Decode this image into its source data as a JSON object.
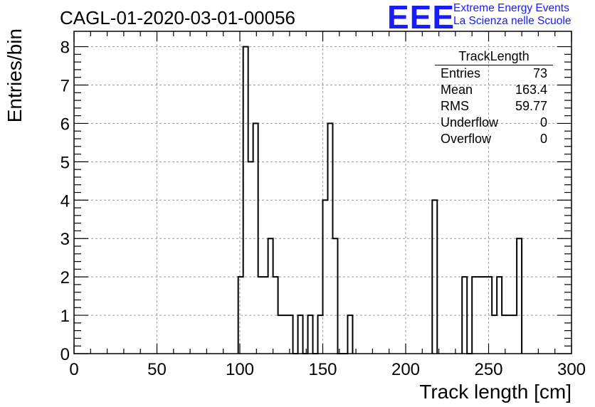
{
  "header": {
    "run_title": "CAGL-01-2020-03-01-00056",
    "logo": "EEE",
    "project_line1": "Extreme Energy Events",
    "project_line2": "La Scienza nelle Scuole"
  },
  "stats": {
    "title": "TrackLength",
    "rows": [
      {
        "label": "Entries",
        "value": "73"
      },
      {
        "label": "Mean",
        "value": "163.4"
      },
      {
        "label": "RMS",
        "value": "59.77"
      },
      {
        "label": "Underflow",
        "value": "0"
      },
      {
        "label": "Overflow",
        "value": "0"
      }
    ]
  },
  "colors": {
    "logo": "#1a1aff",
    "line": "#000000",
    "grid": "#9a9a9a"
  },
  "chart_data": {
    "type": "histogram",
    "title": "CAGL-01-2020-03-01-00056",
    "xlabel": "Track length [cm]",
    "ylabel": "Entries/bin",
    "xlim": [
      0,
      300
    ],
    "ylim": [
      0,
      8.4
    ],
    "xticks": [
      0,
      50,
      100,
      150,
      200,
      250,
      300
    ],
    "yticks": [
      0,
      1,
      2,
      3,
      4,
      5,
      6,
      7,
      8
    ],
    "grid": true,
    "bin_width": 3,
    "bins": [
      {
        "x": 99,
        "value": 2
      },
      {
        "x": 102,
        "value": 8
      },
      {
        "x": 105,
        "value": 5
      },
      {
        "x": 108,
        "value": 6
      },
      {
        "x": 111,
        "value": 2
      },
      {
        "x": 114,
        "value": 2
      },
      {
        "x": 117,
        "value": 3
      },
      {
        "x": 120,
        "value": 2
      },
      {
        "x": 123,
        "value": 1
      },
      {
        "x": 126,
        "value": 1
      },
      {
        "x": 129,
        "value": 1
      },
      {
        "x": 132,
        "value": 0
      },
      {
        "x": 135,
        "value": 1
      },
      {
        "x": 138,
        "value": 0
      },
      {
        "x": 141,
        "value": 1
      },
      {
        "x": 144,
        "value": 0
      },
      {
        "x": 147,
        "value": 1
      },
      {
        "x": 150,
        "value": 4
      },
      {
        "x": 153,
        "value": 6
      },
      {
        "x": 156,
        "value": 3
      },
      {
        "x": 159,
        "value": 0
      },
      {
        "x": 162,
        "value": 0
      },
      {
        "x": 165,
        "value": 1
      },
      {
        "x": 216,
        "value": 4
      },
      {
        "x": 234,
        "value": 2
      },
      {
        "x": 237,
        "value": 0
      },
      {
        "x": 240,
        "value": 2
      },
      {
        "x": 243,
        "value": 2
      },
      {
        "x": 246,
        "value": 2
      },
      {
        "x": 249,
        "value": 2
      },
      {
        "x": 252,
        "value": 1
      },
      {
        "x": 255,
        "value": 2
      },
      {
        "x": 258,
        "value": 1
      },
      {
        "x": 261,
        "value": 1
      },
      {
        "x": 264,
        "value": 1
      },
      {
        "x": 267,
        "value": 3
      }
    ]
  }
}
